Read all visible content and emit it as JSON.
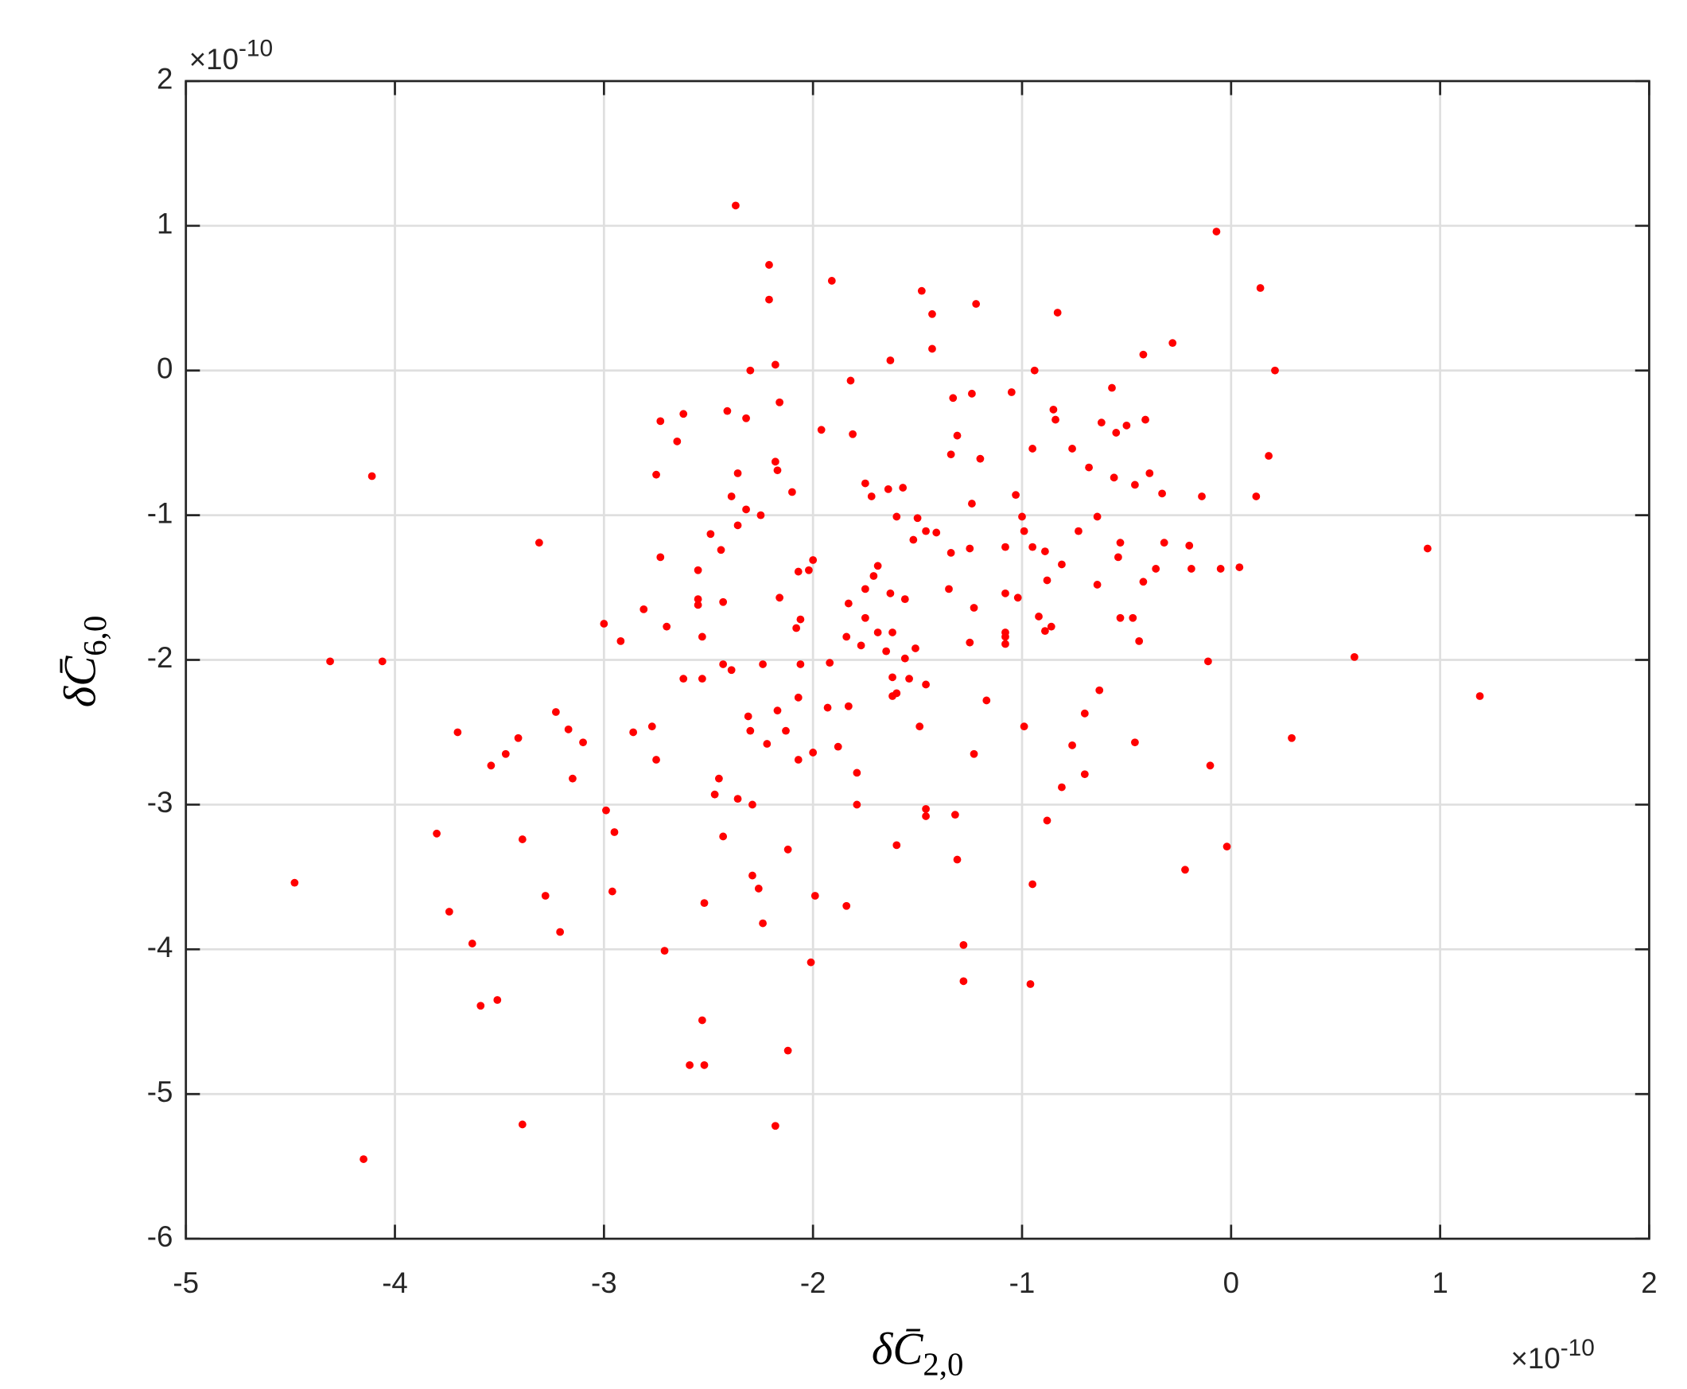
{
  "chart_data": {
    "type": "scatter",
    "x_label": {
      "symbol": "δC̄",
      "subscript": "2,0"
    },
    "y_label": {
      "symbol": "δC̄",
      "subscript": "6,0"
    },
    "x_multiplier": {
      "base": "×10",
      "exponent": "-10"
    },
    "y_multiplier": {
      "base": "×10",
      "exponent": "-10"
    },
    "xlim": [
      -5,
      2
    ],
    "ylim": [
      -6,
      2
    ],
    "xticks": [
      -5,
      -4,
      -3,
      -2,
      -1,
      0,
      1,
      2
    ],
    "yticks": [
      -6,
      -5,
      -4,
      -3,
      -2,
      -1,
      0,
      1,
      2
    ],
    "grid": true,
    "color": "#ff0000",
    "x": [
      -2.37,
      -2.21,
      -2.21,
      -1.91,
      -1.48,
      -1.43,
      -1.22,
      -0.83,
      -0.07,
      0.14,
      -1.43,
      -1.63,
      -2.18,
      -2.3,
      -0.94,
      0.21,
      -0.28,
      -0.42,
      -1.82,
      -2.16,
      -2.62,
      -2.73,
      -2.41,
      -2.32,
      -2.65,
      -1.96,
      -1.81,
      -1.33,
      -1.24,
      -1.05,
      -0.57,
      -0.85,
      -0.84,
      -0.62,
      -0.55,
      -0.5,
      -0.41,
      -1.31,
      -0.95,
      -0.76,
      -0.68,
      -1.34,
      -1.2,
      0.18,
      -2.75,
      -2.36,
      -2.18,
      -2.17,
      -2.39,
      -2.1,
      -1.75,
      -1.57,
      -1.64,
      -1.72,
      -0.39,
      -0.56,
      -0.46,
      -0.33,
      -0.14,
      0.12,
      -4.11,
      -1.03,
      -1.24,
      -2.36,
      -2.32,
      -2.25,
      -2.49,
      -2.44,
      -1.6,
      -1.46,
      -1.52,
      -1.5,
      -1.0,
      -0.99,
      -0.73,
      -0.64,
      -0.05,
      0.94,
      -3.31,
      -2.73,
      -2.55,
      -2.55,
      -2.55,
      -2.07,
      -2.0,
      -2.02,
      -1.69,
      -1.71,
      -1.41,
      -1.34,
      -1.25,
      -1.08,
      -0.95,
      -0.89,
      -0.81,
      -0.53,
      -0.32,
      -0.2,
      -0.19,
      -0.36,
      -0.54,
      -0.42,
      0.04,
      -1.35,
      -0.64,
      -0.88,
      -1.08,
      -1.02,
      -0.92,
      -0.86,
      -0.89,
      -1.08,
      -1.08,
      -1.08,
      -1.23,
      -1.25,
      -0.53,
      -0.47,
      -0.44,
      -0.11,
      0.59,
      1.19,
      0.29,
      -0.1,
      -0.02,
      -0.22,
      -3.0,
      -2.92,
      -2.81,
      -2.7,
      -2.53,
      -2.43,
      -2.16,
      -2.06,
      -2.08,
      -1.75,
      -1.83,
      -1.75,
      -1.69,
      -1.77,
      -1.63,
      -1.56,
      -1.62,
      -1.56,
      -1.51,
      -1.65,
      -1.84,
      -4.31,
      -4.06,
      -2.62,
      -2.53,
      -2.43,
      -2.39,
      -2.24,
      -2.06,
      -1.92,
      -1.62,
      -1.54,
      -1.46,
      -1.6,
      -1.62,
      -1.17,
      -0.63,
      -0.7,
      -0.99,
      -1.49,
      -1.23,
      -0.76,
      -0.46,
      -0.7,
      -0.81,
      -0.88,
      -0.95,
      -0.96,
      -1.32,
      -1.46,
      -1.46,
      -1.31,
      -1.28,
      -1.28,
      -3.7,
      -3.54,
      -3.47,
      -3.41,
      -3.23,
      -3.17,
      -3.1,
      -3.15,
      -2.86,
      -2.77,
      -2.75,
      -2.31,
      -2.3,
      -2.22,
      -2.13,
      -2.17,
      -2.07,
      -1.93,
      -1.88,
      -2.0,
      -2.07,
      -1.79,
      -2.45,
      -2.47,
      -2.36,
      -2.29,
      -1.83,
      -1.79,
      -2.99,
      -2.95,
      -2.96,
      -3.8,
      -3.39,
      -3.74,
      -3.28,
      -3.21,
      -3.63,
      -2.43,
      -2.12,
      -2.29,
      -2.26,
      -2.52,
      -2.24,
      -1.99,
      -1.84,
      -1.6,
      -2.71,
      -2.01,
      -4.48,
      -3.59,
      -3.51,
      -2.53,
      -2.59,
      -2.52,
      -2.12,
      -2.18,
      -3.39,
      -4.15
    ],
    "y": [
      1.14,
      0.73,
      0.49,
      0.62,
      0.55,
      0.39,
      0.46,
      0.4,
      0.96,
      0.57,
      0.15,
      0.07,
      0.04,
      0.0,
      0.0,
      0.0,
      0.19,
      0.11,
      -0.07,
      -0.22,
      -0.3,
      -0.35,
      -0.28,
      -0.33,
      -0.49,
      -0.41,
      -0.44,
      -0.19,
      -0.16,
      -0.15,
      -0.12,
      -0.27,
      -0.34,
      -0.36,
      -0.43,
      -0.38,
      -0.34,
      -0.45,
      -0.54,
      -0.54,
      -0.67,
      -0.58,
      -0.61,
      -0.59,
      -0.72,
      -0.71,
      -0.63,
      -0.69,
      -0.87,
      -0.84,
      -0.78,
      -0.81,
      -0.82,
      -0.87,
      -0.71,
      -0.74,
      -0.79,
      -0.85,
      -0.87,
      -0.87,
      -0.73,
      -0.86,
      -0.92,
      -1.07,
      -0.96,
      -1.0,
      -1.13,
      -1.24,
      -1.01,
      -1.11,
      -1.17,
      -1.02,
      -1.01,
      -1.11,
      -1.11,
      -1.01,
      -1.37,
      -1.23,
      -1.19,
      -1.29,
      -1.38,
      -1.58,
      -1.62,
      -1.39,
      -1.31,
      -1.38,
      -1.35,
      -1.42,
      -1.12,
      -1.26,
      -1.23,
      -1.22,
      -1.22,
      -1.25,
      -1.34,
      -1.19,
      -1.19,
      -1.21,
      -1.37,
      -1.37,
      -1.29,
      -1.46,
      -1.36,
      -1.51,
      -1.48,
      -1.45,
      -1.54,
      -1.57,
      -1.7,
      -1.77,
      -1.8,
      -1.81,
      -1.84,
      -1.89,
      -1.64,
      -1.88,
      -1.71,
      -1.71,
      -1.87,
      -2.01,
      -1.98,
      -2.25,
      -2.54,
      -2.73,
      -3.29,
      -3.45,
      -1.75,
      -1.87,
      -1.65,
      -1.77,
      -1.84,
      -1.6,
      -1.57,
      -1.72,
      -1.78,
      -1.51,
      -1.61,
      -1.71,
      -1.81,
      -1.9,
      -1.54,
      -1.58,
      -1.81,
      -1.99,
      -1.92,
      -1.94,
      -1.84,
      -2.01,
      -2.01,
      -2.13,
      -2.13,
      -2.03,
      -2.07,
      -2.03,
      -2.03,
      -2.02,
      -2.12,
      -2.13,
      -2.17,
      -2.23,
      -2.25,
      -2.28,
      -2.21,
      -2.37,
      -2.46,
      -2.46,
      -2.65,
      -2.59,
      -2.57,
      -2.79,
      -2.88,
      -3.11,
      -3.55,
      -4.24,
      -3.07,
      -3.03,
      -3.08,
      -3.38,
      -3.97,
      -4.22,
      -2.5,
      -2.73,
      -2.65,
      -2.54,
      -2.36,
      -2.48,
      -2.57,
      -2.82,
      -2.5,
      -2.46,
      -2.69,
      -2.39,
      -2.49,
      -2.58,
      -2.49,
      -2.35,
      -2.26,
      -2.33,
      -2.6,
      -2.64,
      -2.69,
      -2.78,
      -2.82,
      -2.93,
      -2.96,
      -3.0,
      -2.32,
      -3.0,
      -3.04,
      -3.19,
      -3.6,
      -3.2,
      -3.24,
      -3.74,
      -3.63,
      -3.88,
      -3.96,
      -3.22,
      -3.31,
      -3.49,
      -3.58,
      -3.68,
      -3.82,
      -3.63,
      -3.7,
      -3.28,
      -4.01,
      -4.09,
      -3.54,
      -4.39,
      -4.35,
      -4.49,
      -4.8,
      -4.8,
      -4.7,
      -5.22,
      -5.21,
      -5.45
    ]
  }
}
